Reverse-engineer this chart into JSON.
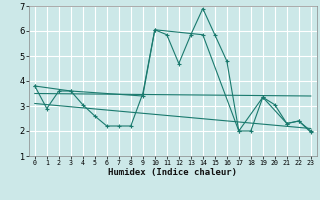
{
  "title": "",
  "xlabel": "Humidex (Indice chaleur)",
  "background_color": "#cce8e8",
  "grid_color": "#ffffff",
  "line_color": "#1a7a6e",
  "xlim": [
    -0.5,
    23.5
  ],
  "ylim": [
    1,
    7
  ],
  "xticks": [
    0,
    1,
    2,
    3,
    4,
    5,
    6,
    7,
    8,
    9,
    10,
    11,
    12,
    13,
    14,
    15,
    16,
    17,
    18,
    19,
    20,
    21,
    22,
    23
  ],
  "yticks": [
    1,
    2,
    3,
    4,
    5,
    6,
    7
  ],
  "lines": [
    {
      "x": [
        0,
        1,
        2,
        3,
        4,
        5,
        6,
        7,
        8,
        9,
        10,
        11,
        12,
        13,
        14,
        15,
        16,
        17,
        18,
        19,
        20,
        21,
        22,
        23
      ],
      "y": [
        3.8,
        2.9,
        3.6,
        3.6,
        3.05,
        2.6,
        2.2,
        2.2,
        2.2,
        3.5,
        6.05,
        5.85,
        4.7,
        5.85,
        6.9,
        5.85,
        4.8,
        2.0,
        2.0,
        3.35,
        3.05,
        2.3,
        2.4,
        2.0
      ],
      "marker": true
    },
    {
      "x": [
        0,
        3,
        9,
        10,
        14,
        17,
        19,
        21,
        22,
        23
      ],
      "y": [
        3.8,
        3.6,
        3.4,
        6.05,
        5.85,
        2.0,
        3.35,
        2.3,
        2.4,
        1.95
      ],
      "marker": true
    },
    {
      "x": [
        0,
        23
      ],
      "y": [
        3.5,
        3.4
      ],
      "marker": false
    },
    {
      "x": [
        0,
        23
      ],
      "y": [
        3.1,
        2.1
      ],
      "marker": false
    }
  ]
}
